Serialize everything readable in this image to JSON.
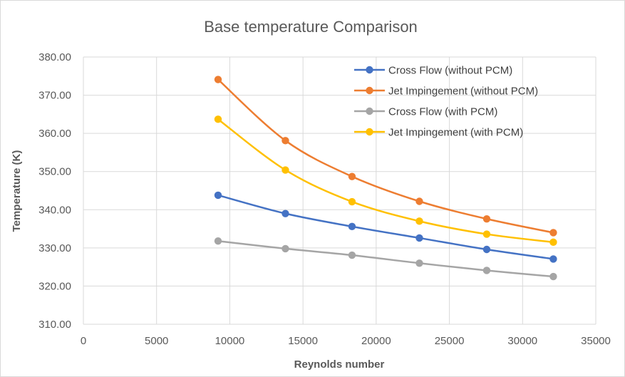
{
  "chart_data": {
    "type": "line",
    "title": "Base temperature Comparison",
    "xlabel": "Reynolds number",
    "ylabel": "Temperature (K)",
    "xlim": [
      0,
      35000
    ],
    "ylim": [
      310,
      380
    ],
    "x_ticks": [
      "0",
      "5000",
      "10000",
      "15000",
      "20000",
      "25000",
      "30000",
      "35000"
    ],
    "y_ticks": [
      "310.00",
      "320.00",
      "330.00",
      "340.00",
      "350.00",
      "360.00",
      "370.00",
      "380.00"
    ],
    "grid": true,
    "smooth": true,
    "legend_position": "top-right",
    "x": [
      9200,
      13800,
      18350,
      22950,
      27550,
      32100
    ],
    "series": [
      {
        "name": "Cross Flow (without PCM)",
        "color": "#4472c4",
        "values": [
          343.8,
          339.0,
          335.6,
          332.6,
          329.6,
          327.1
        ]
      },
      {
        "name": "Jet Impingement (without PCM)",
        "color": "#ed7d31",
        "values": [
          374.1,
          358.1,
          348.7,
          342.2,
          337.6,
          334.0
        ]
      },
      {
        "name": "Cross Flow (with PCM)",
        "color": "#a5a5a5",
        "values": [
          331.8,
          329.8,
          328.1,
          326.0,
          324.1,
          322.5
        ]
      },
      {
        "name": "Jet Impingement (with PCM)",
        "color": "#ffc000",
        "values": [
          363.7,
          350.4,
          342.1,
          337.0,
          333.6,
          331.5
        ]
      }
    ]
  }
}
